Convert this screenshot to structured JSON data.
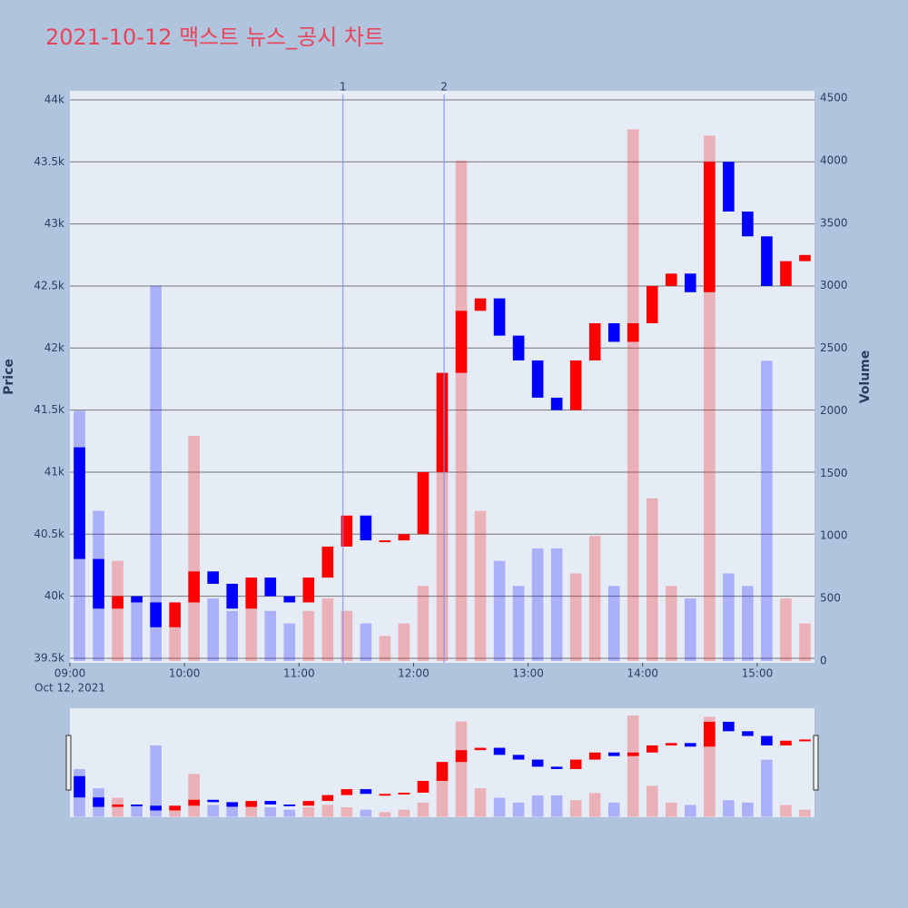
{
  "chart_data": {
    "type": "candlestick",
    "title": "2021-10-12 맥스트 뉴스_공시 차트",
    "y_label": "Price",
    "y2_label": "Volume",
    "date_label": "Oct 12, 2021",
    "increasing_color": "#ff0000",
    "decreasing_color": "#0000ff",
    "x": [
      "09:00",
      "09:10",
      "09:20",
      "09:30",
      "09:40",
      "09:50",
      "10:00",
      "10:10",
      "10:20",
      "10:30",
      "10:40",
      "10:50",
      "11:00",
      "11:10",
      "11:20",
      "11:30",
      "11:40",
      "11:50",
      "12:00",
      "12:10",
      "12:20",
      "12:30",
      "12:40",
      "12:50",
      "13:00",
      "13:10",
      "13:20",
      "13:30",
      "13:40",
      "13:50",
      "14:00",
      "14:10",
      "14:20",
      "14:30",
      "14:40",
      "14:50",
      "15:00",
      "15:10",
      "15:20"
    ],
    "open": [
      41200,
      40300,
      39900,
      40000,
      39950,
      39750,
      39950,
      40200,
      40100,
      39900,
      40150,
      40000,
      39950,
      40150,
      40400,
      40650,
      40450,
      40450,
      40500,
      41000,
      41800,
      42300,
      42400,
      42100,
      41900,
      41600,
      41500,
      41900,
      42200,
      42050,
      42200,
      42500,
      42600,
      42450,
      43500,
      43100,
      42900,
      42500,
      42700
    ],
    "close": [
      40300,
      39900,
      40000,
      39950,
      39750,
      39950,
      40200,
      40100,
      39900,
      40150,
      40000,
      39950,
      40150,
      40400,
      40650,
      40450,
      40450,
      40500,
      41000,
      41800,
      42300,
      42400,
      42100,
      41900,
      41600,
      41500,
      41900,
      42200,
      42050,
      42200,
      42500,
      42600,
      42450,
      43500,
      43100,
      42900,
      42500,
      42700,
      42750
    ],
    "volume": [
      2000,
      1200,
      800,
      500,
      3000,
      300,
      1800,
      500,
      400,
      600,
      400,
      300,
      400,
      500,
      400,
      300,
      200,
      300,
      600,
      1800,
      4000,
      1200,
      800,
      600,
      900,
      900,
      700,
      1000,
      600,
      4250,
      1300,
      600,
      500,
      4200,
      700,
      600,
      2400,
      500,
      300
    ],
    "xlim": [
      "09:00",
      "15:30"
    ],
    "xticks": [
      "09:00",
      "10:00",
      "11:00",
      "12:00",
      "13:00",
      "14:00",
      "15:00"
    ],
    "ylim": [
      39463,
      44073
    ],
    "yticks": [
      {
        "value": 39500,
        "label": "39.5k"
      },
      {
        "value": 40000,
        "label": "40k"
      },
      {
        "value": 40500,
        "label": "40.5k"
      },
      {
        "value": 41000,
        "label": "41k"
      },
      {
        "value": 41500,
        "label": "41.5k"
      },
      {
        "value": 42000,
        "label": "42k"
      },
      {
        "value": 42500,
        "label": "42.5k"
      },
      {
        "value": 43000,
        "label": "43k"
      },
      {
        "value": 43500,
        "label": "43.5k"
      },
      {
        "value": 44000,
        "label": "44k"
      }
    ],
    "y2lim": [
      -15,
      4558
    ],
    "y2ticks": [
      0,
      500,
      1000,
      1500,
      2000,
      2500,
      3000,
      3500,
      4000,
      4500
    ],
    "annotations": [
      {
        "x": "11:23",
        "label": "1"
      },
      {
        "x": "12:16",
        "label": "2"
      }
    ],
    "grid": true
  }
}
